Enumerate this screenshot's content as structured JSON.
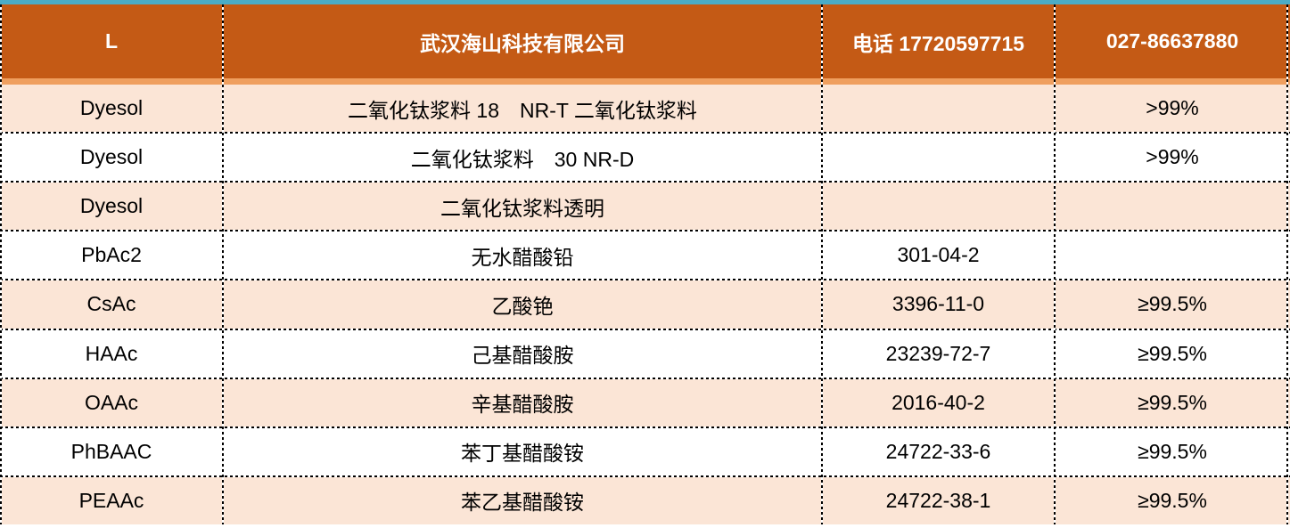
{
  "colors": {
    "top_accent_bar": "#4BACC6",
    "header_bg": "#C45A15",
    "header_bottom_accent": "#EF9F5F",
    "row_alt_bg": "#FBE5D6",
    "row_bg": "#FFFFFF",
    "border": "#000000",
    "header_text": "#FFFFFF",
    "body_text": "#000000"
  },
  "table": {
    "header": {
      "col1": "L",
      "col2": "武汉海山科技有限公司",
      "col3": "电话 17720597715",
      "col4": "027-86637880"
    },
    "rows": [
      {
        "code": "Dyesol",
        "name": "二氧化钛浆料 18　NR-T 二氧化钛浆料",
        "cas": "",
        "purity": ">99%"
      },
      {
        "code": "Dyesol",
        "name": "二氧化钛浆料　30 NR-D",
        "cas": "",
        "purity": ">99%"
      },
      {
        "code": "Dyesol",
        "name": "二氧化钛浆料透明",
        "cas": "",
        "purity": ""
      },
      {
        "code": "PbAc2",
        "name": "无水醋酸铅",
        "cas": "301-04-2",
        "purity": ""
      },
      {
        "code": "CsAc",
        "name": "乙酸铯",
        "cas": "3396-11-0",
        "purity": "≥99.5%"
      },
      {
        "code": "HAAc",
        "name": "己基醋酸胺",
        "cas": "23239-72-7",
        "purity": "≥99.5%"
      },
      {
        "code": "OAAc",
        "name": "辛基醋酸胺",
        "cas": "2016-40-2",
        "purity": "≥99.5%"
      },
      {
        "code": "PhBAAC",
        "name": "苯丁基醋酸铵",
        "cas": "24722-33-6",
        "purity": "≥99.5%"
      },
      {
        "code": "PEAAc",
        "name": "苯乙基醋酸铵",
        "cas": "24722-38-1",
        "purity": "≥99.5%"
      }
    ]
  }
}
